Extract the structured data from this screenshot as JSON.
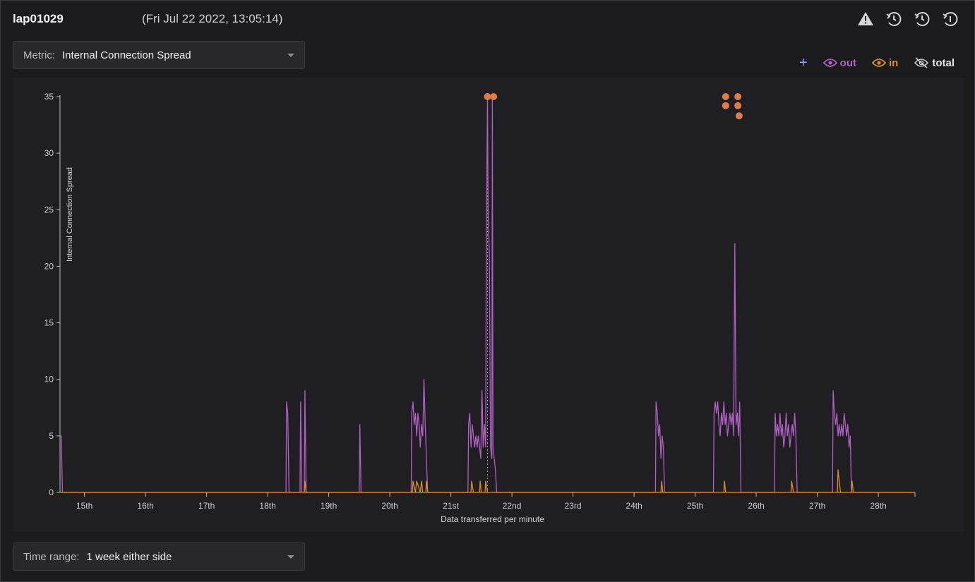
{
  "header": {
    "host": "lap01029",
    "timestamp": "(Fri Jul 22 2022, 13:05:14)",
    "icons": [
      "alert-triangle-icon",
      "history-icon",
      "history-icon",
      "history-icon"
    ]
  },
  "metric_select": {
    "label": "Metric:",
    "value": "Internal Connection Spread"
  },
  "time_range_select": {
    "label": "Time range:",
    "value": "1 week either side"
  },
  "legend": {
    "add_icon": "plus-icon",
    "out_label": "out",
    "in_label": "in",
    "total_label": "total",
    "out_color": "#b360c4",
    "in_color": "#d98f2a",
    "total_hidden": true
  },
  "chart_data": {
    "type": "line",
    "xlabel": "Data transferred per minute",
    "ylabel": "Internal Connection Spread",
    "xlim": [
      14.6,
      28.6
    ],
    "ylim": [
      0,
      35
    ],
    "y_ticks": [
      0,
      5,
      10,
      15,
      20,
      25,
      30,
      35
    ],
    "x_ticks": [
      {
        "value": 15,
        "label": "15th"
      },
      {
        "value": 16,
        "label": "16th"
      },
      {
        "value": 17,
        "label": "17th"
      },
      {
        "value": 18,
        "label": "18th"
      },
      {
        "value": 19,
        "label": "19th"
      },
      {
        "value": 20,
        "label": "20th"
      },
      {
        "value": 21,
        "label": "21st"
      },
      {
        "value": 22,
        "label": "22nd"
      },
      {
        "value": 23,
        "label": "23rd"
      },
      {
        "value": 24,
        "label": "24th"
      },
      {
        "value": 25,
        "label": "25th"
      },
      {
        "value": 26,
        "label": "26th"
      },
      {
        "value": 27,
        "label": "27th"
      },
      {
        "value": 28,
        "label": "28th"
      }
    ],
    "series": [
      {
        "name": "out",
        "color": "#b360c4",
        "points": [
          [
            14.6,
            5
          ],
          [
            14.62,
            5
          ],
          [
            14.64,
            0
          ],
          [
            18.3,
            0
          ],
          [
            18.31,
            8
          ],
          [
            18.33,
            7
          ],
          [
            18.35,
            0
          ],
          [
            18.53,
            0
          ],
          [
            18.54,
            8
          ],
          [
            18.56,
            0
          ],
          [
            18.6,
            0
          ],
          [
            18.61,
            9
          ],
          [
            18.63,
            0
          ],
          [
            19.5,
            0
          ],
          [
            19.51,
            6
          ],
          [
            19.53,
            0
          ],
          [
            20.35,
            0
          ],
          [
            20.36,
            7
          ],
          [
            20.38,
            8
          ],
          [
            20.4,
            6
          ],
          [
            20.42,
            7
          ],
          [
            20.44,
            5
          ],
          [
            20.46,
            7
          ],
          [
            20.48,
            6
          ],
          [
            20.5,
            4
          ],
          [
            20.52,
            6
          ],
          [
            20.54,
            5
          ],
          [
            20.56,
            10
          ],
          [
            20.58,
            6
          ],
          [
            20.6,
            3
          ],
          [
            20.62,
            0
          ],
          [
            21.28,
            0
          ],
          [
            21.29,
            6
          ],
          [
            21.31,
            7
          ],
          [
            21.33,
            4
          ],
          [
            21.35,
            6
          ],
          [
            21.37,
            5
          ],
          [
            21.39,
            4
          ],
          [
            21.41,
            5
          ],
          [
            21.43,
            4
          ],
          [
            21.45,
            5
          ],
          [
            21.47,
            4
          ],
          [
            21.49,
            3
          ],
          [
            21.51,
            9
          ],
          [
            21.53,
            4
          ],
          [
            21.55,
            6
          ],
          [
            21.57,
            4
          ],
          [
            21.58,
            22
          ],
          [
            21.6,
            35
          ],
          [
            21.61,
            25
          ],
          [
            21.63,
            21
          ],
          [
            21.65,
            4
          ],
          [
            21.67,
            3
          ],
          [
            21.68,
            35
          ],
          [
            21.69,
            4
          ],
          [
            21.71,
            3
          ],
          [
            21.73,
            2
          ],
          [
            21.75,
            0
          ],
          [
            24.35,
            0
          ],
          [
            24.36,
            8
          ],
          [
            24.38,
            7
          ],
          [
            24.4,
            5
          ],
          [
            24.42,
            6
          ],
          [
            24.44,
            3
          ],
          [
            24.46,
            5
          ],
          [
            24.48,
            4
          ],
          [
            24.5,
            0
          ],
          [
            25.3,
            0
          ],
          [
            25.31,
            7
          ],
          [
            25.33,
            8
          ],
          [
            25.35,
            7
          ],
          [
            25.37,
            8
          ],
          [
            25.39,
            6
          ],
          [
            25.41,
            5
          ],
          [
            25.43,
            7
          ],
          [
            25.45,
            6
          ],
          [
            25.47,
            8
          ],
          [
            25.49,
            6
          ],
          [
            25.51,
            7
          ],
          [
            25.53,
            5
          ],
          [
            25.55,
            6
          ],
          [
            25.57,
            7
          ],
          [
            25.59,
            6
          ],
          [
            25.61,
            7
          ],
          [
            25.63,
            5
          ],
          [
            25.65,
            22
          ],
          [
            25.67,
            6
          ],
          [
            25.69,
            7
          ],
          [
            25.71,
            5
          ],
          [
            25.73,
            8
          ],
          [
            25.75,
            0
          ],
          [
            26.3,
            0
          ],
          [
            26.31,
            7
          ],
          [
            26.33,
            5
          ],
          [
            26.35,
            6
          ],
          [
            26.37,
            5
          ],
          [
            26.39,
            7
          ],
          [
            26.41,
            5
          ],
          [
            26.43,
            6
          ],
          [
            26.45,
            4
          ],
          [
            26.47,
            5
          ],
          [
            26.49,
            7
          ],
          [
            26.51,
            5
          ],
          [
            26.53,
            6
          ],
          [
            26.55,
            4
          ],
          [
            26.57,
            5
          ],
          [
            26.59,
            6
          ],
          [
            26.61,
            5
          ],
          [
            26.63,
            7
          ],
          [
            26.65,
            5
          ],
          [
            26.67,
            0
          ],
          [
            27.25,
            0
          ],
          [
            27.26,
            9
          ],
          [
            27.28,
            7
          ],
          [
            27.3,
            6
          ],
          [
            27.32,
            7
          ],
          [
            27.34,
            5
          ],
          [
            27.36,
            6
          ],
          [
            27.38,
            5
          ],
          [
            27.4,
            6
          ],
          [
            27.42,
            5
          ],
          [
            27.44,
            7
          ],
          [
            27.46,
            6
          ],
          [
            27.48,
            5
          ],
          [
            27.5,
            6
          ],
          [
            27.52,
            4
          ],
          [
            27.54,
            5
          ],
          [
            27.56,
            0
          ],
          [
            28.6,
            0
          ]
        ]
      },
      {
        "name": "in",
        "color": "#d98f2a",
        "points": [
          [
            14.6,
            0
          ],
          [
            18.6,
            0
          ],
          [
            18.61,
            1
          ],
          [
            18.63,
            0
          ],
          [
            20.37,
            0
          ],
          [
            20.38,
            1
          ],
          [
            20.42,
            0
          ],
          [
            20.44,
            1
          ],
          [
            20.5,
            0
          ],
          [
            20.52,
            1
          ],
          [
            20.54,
            0
          ],
          [
            20.59,
            0
          ],
          [
            20.6,
            1
          ],
          [
            20.62,
            0
          ],
          [
            21.33,
            0
          ],
          [
            21.34,
            1
          ],
          [
            21.37,
            0
          ],
          [
            21.47,
            0
          ],
          [
            21.48,
            1
          ],
          [
            21.5,
            0
          ],
          [
            21.56,
            0
          ],
          [
            21.57,
            1
          ],
          [
            21.6,
            0
          ],
          [
            24.44,
            0
          ],
          [
            24.45,
            1
          ],
          [
            24.47,
            0
          ],
          [
            25.47,
            0
          ],
          [
            25.48,
            1
          ],
          [
            25.5,
            0
          ],
          [
            26.57,
            0
          ],
          [
            26.58,
            1
          ],
          [
            26.61,
            0
          ],
          [
            27.33,
            0
          ],
          [
            27.34,
            2
          ],
          [
            27.36,
            1
          ],
          [
            27.38,
            0
          ],
          [
            27.56,
            0
          ],
          [
            27.57,
            1
          ],
          [
            27.59,
            0
          ],
          [
            28.6,
            0
          ]
        ]
      }
    ],
    "event_markers": {
      "color": "#e07a4a",
      "points": [
        [
          21.6,
          35
        ],
        [
          21.7,
          35
        ],
        [
          25.5,
          35
        ],
        [
          25.7,
          35
        ],
        [
          25.5,
          34.2
        ],
        [
          25.7,
          34.2
        ],
        [
          25.72,
          33.3
        ]
      ],
      "reference_line_x": 21.6
    }
  }
}
